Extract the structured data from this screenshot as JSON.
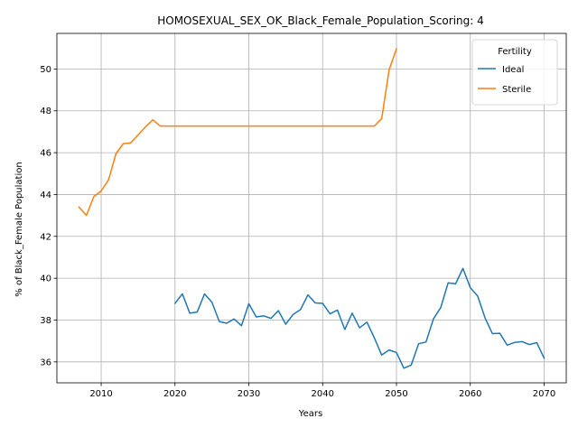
{
  "chart_data": {
    "type": "line",
    "title": "HOMOSEXUAL_SEX_OK_Black_Female_Population_Scoring: 4",
    "xlabel": "Years",
    "ylabel": "% of Black_Female Population",
    "xlim": [
      2004,
      2073
    ],
    "ylim": [
      35,
      51.7
    ],
    "xticks": [
      2010,
      2020,
      2030,
      2040,
      2050,
      2060,
      2070
    ],
    "yticks": [
      36,
      38,
      40,
      42,
      44,
      46,
      48,
      50
    ],
    "grid": true,
    "legend": {
      "title": "Fertility",
      "placement": "top-right"
    },
    "series": [
      {
        "name": "Ideal",
        "color": "#1f77b4",
        "x": [
          2020,
          2021,
          2022,
          2023,
          2024,
          2025,
          2026,
          2027,
          2028,
          2029,
          2030,
          2031,
          2032,
          2033,
          2034,
          2035,
          2036,
          2037,
          2038,
          2039,
          2040,
          2041,
          2042,
          2043,
          2044,
          2045,
          2046,
          2047,
          2048,
          2049,
          2050,
          2051,
          2052,
          2053,
          2054,
          2055,
          2056,
          2057,
          2058,
          2059,
          2060,
          2061,
          2062,
          2063,
          2064,
          2065,
          2066,
          2067,
          2068,
          2069,
          2070
        ],
        "y": [
          38.8,
          39.25,
          38.33,
          38.38,
          39.25,
          38.85,
          37.93,
          37.85,
          38.05,
          37.73,
          38.78,
          38.15,
          38.2,
          38.08,
          38.45,
          37.8,
          38.27,
          38.5,
          39.2,
          38.82,
          38.8,
          38.3,
          38.48,
          37.55,
          38.33,
          37.63,
          37.9,
          37.15,
          36.33,
          36.57,
          36.45,
          35.7,
          35.85,
          36.87,
          36.95,
          38.05,
          38.6,
          39.78,
          39.73,
          40.47,
          39.55,
          39.15,
          38.1,
          37.35,
          37.37,
          36.8,
          36.93,
          36.97,
          36.83,
          36.92,
          36.18
        ]
      },
      {
        "name": "Sterile",
        "color": "#ff7f0e",
        "x": [
          2007,
          2008,
          2009,
          2010,
          2011,
          2012,
          2013,
          2014,
          2015,
          2016,
          2017,
          2018,
          2019,
          2020,
          2025,
          2030,
          2035,
          2040,
          2045,
          2047,
          2048,
          2049,
          2050
        ],
        "y": [
          43.4,
          43.0,
          43.9,
          44.17,
          44.7,
          45.95,
          46.43,
          46.47,
          46.85,
          47.23,
          47.57,
          47.27,
          47.27,
          47.27,
          47.27,
          47.27,
          47.27,
          47.27,
          47.27,
          47.27,
          47.63,
          49.95,
          50.97
        ]
      }
    ]
  }
}
